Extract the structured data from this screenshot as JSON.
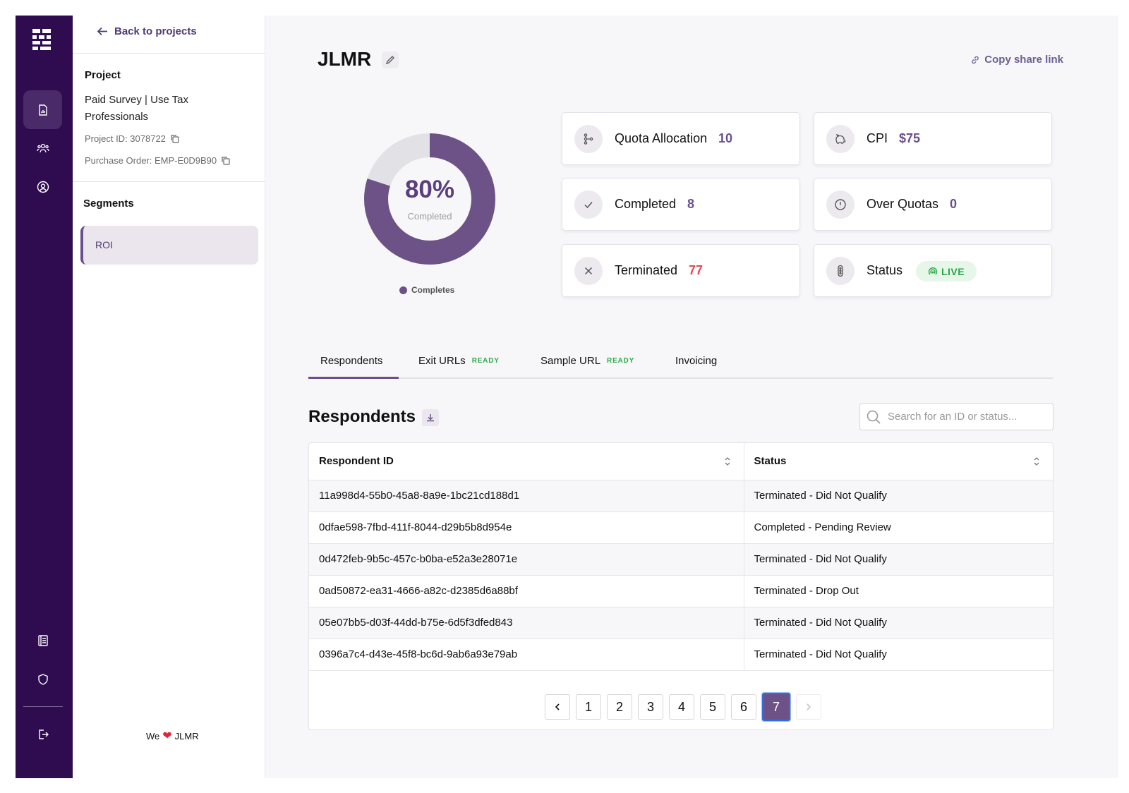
{
  "sidebar": {
    "back_label": "Back to projects",
    "project_heading": "Project",
    "project_name": "Paid Survey | Use Tax Professionals",
    "project_id": "Project ID: 3078722",
    "purchase_order": "Purchase Order: EMP-E0D9B90",
    "segments_heading": "Segments",
    "segments": [
      {
        "label": "ROI",
        "active": true
      }
    ],
    "footer_prefix": "We",
    "footer_suffix": "JLMR"
  },
  "rail": {
    "icons": [
      "grid-logo-icon",
      "report-icon",
      "users-icon",
      "account-icon",
      "book-icon",
      "shield-icon",
      "logout-icon"
    ],
    "active": "report-icon"
  },
  "header": {
    "title": "JLMR",
    "share_label": "Copy share link"
  },
  "summary": {
    "completed_percent": 80,
    "percent_label": "80%",
    "percent_caption": "Completed",
    "legend_label": "Completes",
    "colors": {
      "primary": "#6d5287",
      "track": "#e2e2e6",
      "accent_red": "#e5484d",
      "live_green": "#28a745"
    }
  },
  "stats": {
    "quota": {
      "label": "Quota Allocation",
      "value": "10"
    },
    "cpi": {
      "label": "CPI",
      "value": "$75"
    },
    "completed": {
      "label": "Completed",
      "value": "8"
    },
    "over_quotas": {
      "label": "Over Quotas",
      "value": "0"
    },
    "terminated": {
      "label": "Terminated",
      "value": "77"
    },
    "status": {
      "label": "Status",
      "value": "LIVE"
    }
  },
  "tabs": [
    {
      "label": "Respondents",
      "badge": "",
      "active": true
    },
    {
      "label": "Exit URLs",
      "badge": "READY"
    },
    {
      "label": "Sample URL",
      "badge": "READY"
    },
    {
      "label": "Invoicing",
      "badge": ""
    }
  ],
  "respondents": {
    "heading": "Respondents",
    "search_placeholder": "Search for an ID or status...",
    "columns": [
      "Respondent ID",
      "Status"
    ],
    "rows": [
      [
        "11a998d4-55b0-45a8-8a9e-1bc21cd188d1",
        "Terminated - Did Not Qualify"
      ],
      [
        "0dfae598-7fbd-411f-8044-d29b5b8d954e",
        "Completed - Pending Review"
      ],
      [
        "0d472feb-9b5c-457c-b0ba-e52a3e28071e",
        "Terminated - Did Not Qualify"
      ],
      [
        "0ad50872-ea31-4666-a82c-d2385d6a88bf",
        "Terminated - Drop Out"
      ],
      [
        "05e07bb5-d03f-44dd-b75e-6d5f3dfed843",
        "Terminated - Did Not Qualify"
      ],
      [
        "0396a7c4-d43e-45f8-bc6d-9ab6a93e79ab",
        "Terminated - Did Not Qualify"
      ]
    ],
    "pages": [
      "1",
      "2",
      "3",
      "4",
      "5",
      "6",
      "7"
    ],
    "current_page": "7"
  }
}
